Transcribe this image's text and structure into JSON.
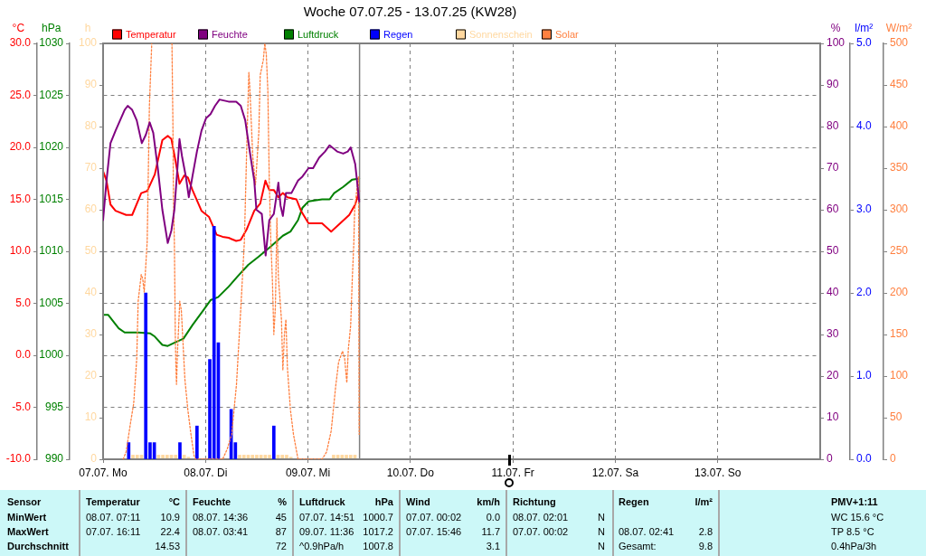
{
  "chart_data": [
    {
      "type": "line",
      "title": "Woche 07.07.25 - 13.07.25 (KW28)",
      "series": [
        {
          "name": "Temperatur",
          "color": "#ff0000",
          "x": [
            "--07-07T00:00",
            "--07-07T00:48",
            "--07-07T01:44",
            "--07-07T02:55",
            "--07-07T05:24",
            "--07-07T06:49",
            "--07-07T08:56",
            "--07-07T10:20",
            "--07-07T12:07",
            "--07-07T13:53",
            "--07-07T15:09",
            "--07-07T16:00",
            "--07-07T17:03",
            "--07-07T17:54",
            "--07-07T19:02",
            "--07-07T19:52",
            "--07-07T20:56",
            "--07-07T23:03",
            "--07-08T00:50",
            "--07-08T02:36",
            "--07-08T04:00",
            "--07-08T05:24",
            "--07-08T07:11",
            "--07-08T08:15",
            "--07-08T09:38",
            "--07-08T11:25",
            "--07-08T12:49",
            "--07-08T14:02",
            "--07-08T14:56",
            "--07-08T16:00",
            "--07-08T17:04",
            "--07-08T18:07",
            "--07-08T19:11",
            "--07-08T21:18",
            "--07-08T22:22",
            "--07-09T00:08",
            "--07-09T03:18",
            "--07-09T05:26",
            "--07-09T07:33",
            "--07-09T09:40",
            "--07-09T11:04",
            "--07-09T12:00"
          ],
          "values": [
            17.7,
            16.8,
            14.5,
            13.9,
            13.5,
            13.5,
            15.6,
            15.8,
            17.4,
            20.7,
            21.1,
            20.8,
            18.5,
            16.5,
            17.3,
            17.1,
            15.9,
            13.9,
            13.3,
            11.6,
            11.4,
            11.3,
            11.0,
            11.1,
            12.1,
            13.9,
            14.6,
            16.8,
            15.9,
            15.9,
            15.2,
            15.6,
            15.2,
            15.0,
            13.9,
            12.7,
            12.7,
            11.9,
            12.7,
            13.5,
            14.5,
            15.8
          ]
        },
        {
          "name": "Luftdruck",
          "color": "#008000",
          "axis": "y2",
          "x": [
            "--07-07T00:00",
            "--07-07T01:10",
            "--07-07T03:39",
            "--07-07T05:03",
            "--07-07T08:13",
            "--07-07T11:03",
            "--07-07T12:07",
            "--07-07T13:53",
            "--07-07T15:09",
            "--07-07T16:42",
            "--07-07T18:49",
            "--07-07T20:56",
            "--07-07T23:25",
            "--07-08T01:10",
            "--07-08T02:57",
            "--07-08T05:24",
            "--07-08T07:32",
            "--07-08T10:00",
            "--07-08T12:29",
            "--07-08T15:23",
            "--07-08T18:07",
            "--07-08T19:54",
            "--07-08T21:40",
            "--07-08T22:43",
            "--07-09T00:08",
            "--07-09T01:32",
            "--07-09T03:19",
            "--07-09T05:04",
            "--07-09T06:08",
            "--07-09T08:15",
            "--07-09T10:22",
            "--07-09T12:00"
          ],
          "values": [
            1003.9,
            1003.9,
            1002.6,
            1002.2,
            1002.2,
            1002.1,
            1001.8,
            1001.0,
            1000.9,
            1001.2,
            1001.6,
            1002.9,
            1004.3,
            1005.3,
            1005.6,
            1006.6,
            1007.6,
            1008.7,
            1009.5,
            1010.5,
            1011.5,
            1011.9,
            1013.0,
            1014.2,
            1014.8,
            1014.9,
            1015.0,
            1015.0,
            1015.6,
            1016.2,
            1016.9,
            1017.0
          ]
        },
        {
          "name": "Sonnenschein",
          "type": "bar",
          "color": "#ffd8a0",
          "axis": "y3",
          "x": [
            "--07-07T07:00",
            "--07-07T08:00",
            "--07-07T09:00",
            "--07-07T13:00",
            "--07-07T14:00",
            "--07-07T15:00",
            "--07-07T16:00",
            "--07-07T17:00",
            "--07-07T19:00",
            "--07-07T20:00",
            "--07-08T08:00",
            "--07-08T09:00",
            "--07-08T10:00",
            "--07-08T11:00",
            "--07-08T12:00",
            "--07-08T13:00",
            "--07-08T14:00",
            "--07-08T15:00",
            "--07-08T17:00",
            "--07-08T18:00",
            "--07-08T19:00",
            "--07-08T20:00",
            "--07-09T06:00",
            "--07-09T07:00",
            "--07-09T08:00",
            "--07-09T09:00",
            "--07-09T10:00",
            "--07-09T11:00"
          ],
          "values": [
            1,
            1,
            1,
            1,
            1,
            1,
            1,
            1,
            1,
            0.5,
            1,
            1,
            1,
            1,
            1,
            1,
            1,
            1,
            1,
            1,
            1,
            0.5,
            1,
            1,
            1,
            1,
            1,
            1
          ]
        }
      ],
      "xlim": [
        "--07-07",
        "--07-14"
      ],
      "xticks": [
        {
          "value": "--07-07",
          "label": "07.07. Mo"
        },
        {
          "value": "--07-08",
          "label": "08.07. Di"
        },
        {
          "value": "--07-09",
          "label": "09.07. Mi"
        },
        {
          "value": "--07-10",
          "label": "10.07. Do"
        },
        {
          "value": "--07-11",
          "label": "11.07. Fr"
        },
        {
          "value": "--07-12",
          "label": "12.07. Sa"
        },
        {
          "value": "--07-13",
          "label": "13.07. So"
        }
      ],
      "ylabel": "°C",
      "ylim": [
        -10,
        30
      ],
      "yticks": [
        {
          "value": -10,
          "label": "-10.0"
        },
        {
          "value": -5,
          "label": "-5.0"
        },
        {
          "value": 0,
          "label": "0.0"
        },
        {
          "value": 5,
          "label": "5.0"
        },
        {
          "value": 10,
          "label": "10.0"
        },
        {
          "value": 15,
          "label": "15.0"
        },
        {
          "value": 20,
          "label": "20.0"
        },
        {
          "value": 25,
          "label": "25.0"
        },
        {
          "value": 30,
          "label": "30.0"
        }
      ],
      "y2label": "hPa",
      "y2lim": [
        990,
        1030
      ],
      "y2ticks": [
        990,
        995,
        1000,
        1005,
        1010,
        1015,
        1020,
        1025,
        1030
      ],
      "y3label": "h",
      "y3lim": [
        0,
        100
      ],
      "y3ticks": [
        0,
        10,
        20,
        30,
        40,
        50,
        60,
        70,
        80,
        90,
        100
      ],
      "ref_lines": [
        {
          "axis": "x",
          "value": "--07-09T12:05",
          "color": "#808080"
        }
      ],
      "grid": true,
      "legend": "top left",
      "marker": "none"
    },
    {
      "type": "line",
      "series": [
        {
          "name": "Feuchte",
          "color": "#800080",
          "x": [
            "--07-07T00:00",
            "--07-07T00:48",
            "--07-07T01:44",
            "--07-07T02:55",
            "--07-07T03:59",
            "--07-07T05:03",
            "--07-07T05:46",
            "--07-07T06:49",
            "--07-07T07:53",
            "--07-07T09:04",
            "--07-07T10:00",
            "--07-07T10:55",
            "--07-07T11:45",
            "--07-07T12:49",
            "--07-07T13:53",
            "--07-07T15:09",
            "--07-07T16:00",
            "--07-07T16:42",
            "--07-07T17:25",
            "--07-07T17:54",
            "--07-07T18:28",
            "--07-07T19:23",
            "--07-07T20:05",
            "--07-07T20:56",
            "--07-07T21:59",
            "--07-07T23:03",
            "--07-08T00:07",
            "--07-08T01:10",
            "--07-08T02:14",
            "--07-08T03:17",
            "--07-08T05:24",
            "--07-08T07:11",
            "--07-08T08:15",
            "--07-08T09:18",
            "--07-08T10:22",
            "--07-08T11:25",
            "--07-08T11:55",
            "--07-08T13:11",
            "--07-08T14:05",
            "--07-08T14:56",
            "--07-08T16:00",
            "--07-08T17:04",
            "--07-08T17:34",
            "--07-08T18:07",
            "--07-08T18:50",
            "--07-08T20:07",
            "--07-08T21:40",
            "--07-08T22:43",
            "--07-09T00:08",
            "--07-09T01:12",
            "--07-09T02:36",
            "--07-09T04:00",
            "--07-09T05:04",
            "--07-09T06:50",
            "--07-09T08:15",
            "--07-09T09:19",
            "--07-09T10:00",
            "--07-09T11:04",
            "--07-09T12:00"
          ],
          "values": [
            57.5,
            67,
            76,
            79,
            81.5,
            84,
            85,
            84,
            81.5,
            76,
            78,
            81,
            78.5,
            70,
            60,
            52,
            55,
            60,
            70,
            77,
            73,
            68,
            63,
            68,
            74,
            79,
            82,
            83,
            85,
            86.5,
            86,
            86,
            85,
            81.5,
            74,
            67,
            60,
            59,
            49,
            57.5,
            59,
            66.5,
            61,
            58.5,
            64,
            64,
            67,
            68,
            70,
            70,
            72.5,
            74,
            75.5,
            74,
            73.5,
            74,
            75,
            71,
            62
          ]
        },
        {
          "name": "Regen",
          "type": "bar",
          "color": "#0000ff",
          "axis": "y2",
          "x": [
            "--07-07T06:00",
            "--07-07T10:00",
            "--07-07T11:00",
            "--07-07T12:00",
            "--07-07T18:00",
            "--07-07T22:00",
            "--07-08T01:00",
            "--07-08T02:00",
            "--07-08T03:00",
            "--07-08T06:00",
            "--07-08T07:00",
            "--07-08T16:00"
          ],
          "values": [
            0.2,
            2.0,
            0.2,
            0.2,
            0.2,
            0.4,
            1.2,
            2.8,
            1.4,
            0.6,
            0.2,
            0.4
          ]
        },
        {
          "name": "Solar",
          "color": "#ff8040",
          "axis": "y3",
          "line_style": "dotted",
          "x": [
            "--07-07T04:42",
            "--07-07T05:24",
            "--07-07T06:28",
            "--07-07T07:10",
            "--07-07T07:53",
            "--07-07T08:13",
            "--07-07T08:56",
            "--07-07T09:17",
            "--07-07T09:38",
            "--07-07T10:20",
            "--07-07T10:51",
            "--07-07T11:24",
            "--07-07T13:00",
            "--07-07T16:08",
            "--07-07T16:21",
            "--07-07T16:29",
            "--07-07T16:42",
            "--07-07T16:55",
            "--07-07T17:03",
            "--07-07T17:12",
            "--07-07T17:25",
            "--07-07T17:58",
            "--07-07T18:20",
            "--07-07T19:10",
            "--07-07T19:52",
            "--07-07T20:35",
            "--07-07T21:17",
            "--07-07T21:39",
            "--07-08T04:00",
            "--07-08T05:04",
            "--07-08T06:08",
            "--07-08T07:15",
            "--07-08T08:15",
            "--07-08T09:06",
            "--07-08T09:38",
            "--07-08T10:09",
            "--07-08T10:22",
            "--07-08T11:04",
            "--07-08T11:42",
            "--07-08T12:29",
            "--07-08T12:49",
            "--07-08T13:32",
            "--07-08T13:53",
            "--07-08T14:14",
            "--07-08T14:36",
            "--07-08T14:56",
            "--07-08T15:18",
            "--07-08T15:40",
            "--07-08T16:00",
            "--07-08T16:22",
            "--07-08T16:43",
            "--07-08T17:04",
            "--07-08T17:47",
            "--07-08T18:07",
            "--07-08T18:29",
            "--07-08T18:50",
            "--07-08T19:11",
            "--07-08T19:54",
            "--07-08T20:36",
            "--07-08T21:40",
            "--07-09T03:19",
            "--07-09T04:22",
            "--07-09T05:26",
            "--07-09T06:30",
            "--07-09T07:11",
            "--07-09T08:06",
            "--07-09T08:36",
            "--07-09T09:06",
            "--07-09T09:27",
            "--07-09T10:00",
            "--07-09T10:22",
            "--07-09T10:44",
            "--07-09T10:56",
            "--07-09T11:26",
            "--07-09T11:51",
            "--07-09T12:00"
          ],
          "values": [
            0,
            9,
            45,
            67,
            121,
            190,
            222,
            217,
            201,
            262,
            425,
            500,
            null,
            500,
            407,
            313,
            262,
            150,
            114,
            90,
            128,
            190,
            179,
            96,
            59,
            30,
            5,
            0,
            0,
            12,
            30,
            90,
            180,
            262,
            371,
            465,
            447,
            364,
            330,
            393,
            462,
            480,
            500,
            487,
            443,
            335,
            262,
            215,
            150,
            183,
            290,
            219,
            168,
            107,
            150,
            168,
            110,
            59,
            30,
            0,
            0,
            9,
            34,
            88,
            117,
            130,
            121,
            92,
            132,
            161,
            215,
            259,
            299,
            324,
            340,
            30
          ]
        }
      ],
      "xlim": [
        "--07-07",
        "--07-14"
      ],
      "ylabel": "%",
      "ylim": [
        0,
        100
      ],
      "yticks": [
        0,
        10,
        20,
        30,
        40,
        50,
        60,
        70,
        80,
        90,
        100
      ],
      "y2label": "l/m²",
      "y2lim": [
        0,
        5
      ],
      "y2ticks": [
        {
          "value": 0,
          "label": "0.0"
        },
        {
          "value": 1,
          "label": "1.0"
        },
        {
          "value": 2,
          "label": "2.0"
        },
        {
          "value": 3,
          "label": "3.0"
        },
        {
          "value": 4,
          "label": "4.0"
        },
        {
          "value": 5,
          "label": "5.0"
        }
      ],
      "y3label": "W/m²",
      "y3lim": [
        0,
        500
      ],
      "y3ticks": [
        0,
        50,
        100,
        150,
        200,
        250,
        300,
        350,
        400,
        450,
        500
      ],
      "tick_labels": "y",
      "legend": "top left",
      "marker": "none"
    },
    {
      "type": "other",
      "annotations": [
        "Sensor",
        "Temperatur",
        "°C",
        "Feuchte",
        "%",
        "Luftdruck",
        "hPa",
        "Wind",
        "km/h",
        "Richtung",
        "Regen",
        "l/m²",
        "PMV+1:11",
        "MinWert",
        "08.07. 07:11",
        "10.9",
        "08.07. 14:36",
        "45",
        "07.07. 14:51",
        "1000.7",
        "07.07. 00:02",
        "0.0",
        "08.07. 02:01",
        "N",
        "WC 15.6 °C",
        "MaxWert",
        "07.07. 16:11",
        "22.4",
        "08.07. 03:41",
        "87",
        "09.07. 11:36",
        "1017.2",
        "07.07. 15:46",
        "11.7",
        "07.07. 00:02",
        "N",
        "08.07. 02:41",
        "2.8",
        "TP 8.5 °C",
        "Durchschnitt",
        "14.53",
        "72",
        "^0.9hPa/h",
        "1007.8",
        "3.1",
        "N",
        "Gesamt:",
        "9.8",
        "0.4hPa/3h"
      ]
    }
  ]
}
